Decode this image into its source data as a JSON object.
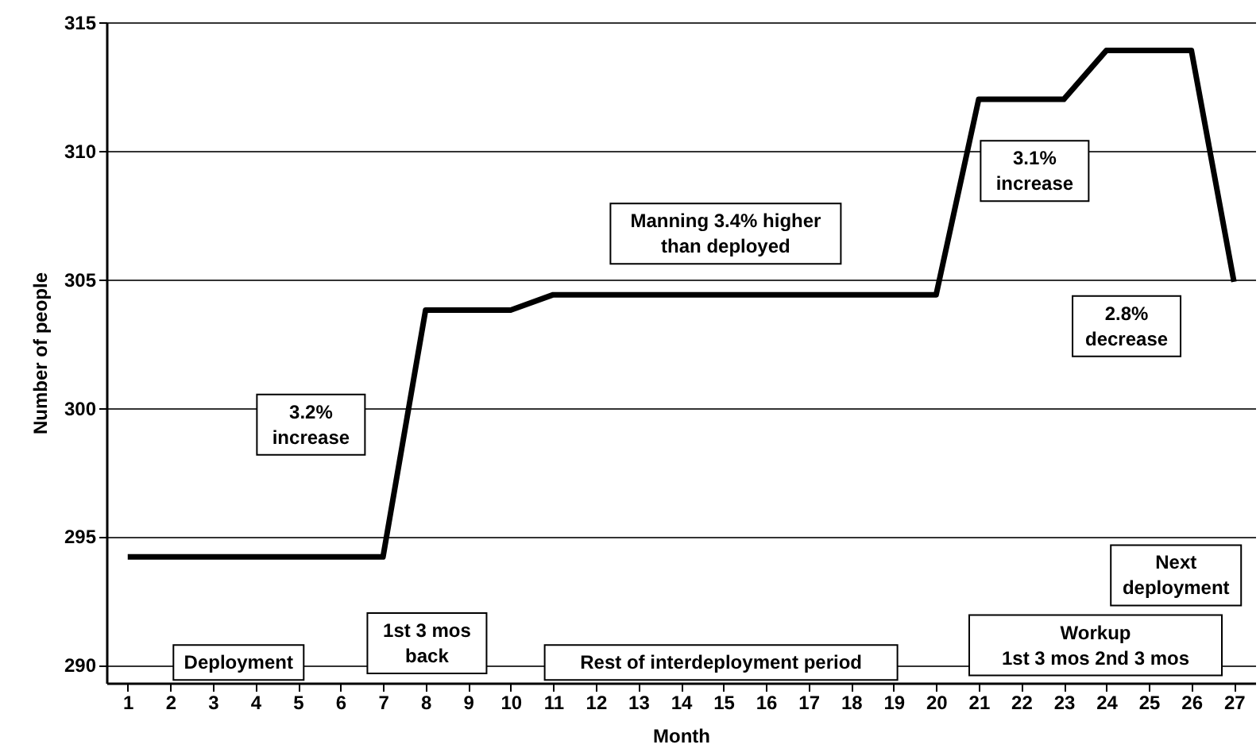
{
  "chart_data": {
    "type": "line",
    "xlabel": "Month",
    "ylabel": "Number of people",
    "x": [
      1,
      2,
      3,
      4,
      5,
      6,
      7,
      8,
      9,
      10,
      11,
      12,
      13,
      14,
      15,
      16,
      17,
      18,
      19,
      20,
      21,
      22,
      23,
      24,
      25,
      26,
      27
    ],
    "series": [
      {
        "color": "#000000",
        "values": [
          294.2,
          294.2,
          294.2,
          294.2,
          294.2,
          294.2,
          294.2,
          303.8,
          303.8,
          303.8,
          304.4,
          304.4,
          304.4,
          304.4,
          304.4,
          304.4,
          304.4,
          304.4,
          304.4,
          304.4,
          312.0,
          312.0,
          312.0,
          313.9,
          313.9,
          313.9,
          304.9
        ]
      }
    ],
    "xlim": [
      0.5,
      27.5
    ],
    "xticks": [
      1,
      2,
      3,
      4,
      5,
      6,
      7,
      8,
      9,
      10,
      11,
      12,
      13,
      14,
      15,
      16,
      17,
      18,
      19,
      20,
      21,
      22,
      23,
      24,
      25,
      26,
      27
    ],
    "ylim": [
      289.3,
      315
    ],
    "yticks": [
      290,
      295,
      300,
      305,
      310,
      315
    ],
    "grid": "y",
    "annotations": [
      "3.2%\nincrease",
      "Manning 3.4% higher\nthan deployed",
      "3.1%\nincrease",
      "2.8%\ndecrease",
      "Deployment",
      "1st 3 mos\nback",
      "Rest of interdeployment period",
      "Workup\n1st 3 mos   2nd 3 mos",
      "Next\ndeployment"
    ]
  }
}
